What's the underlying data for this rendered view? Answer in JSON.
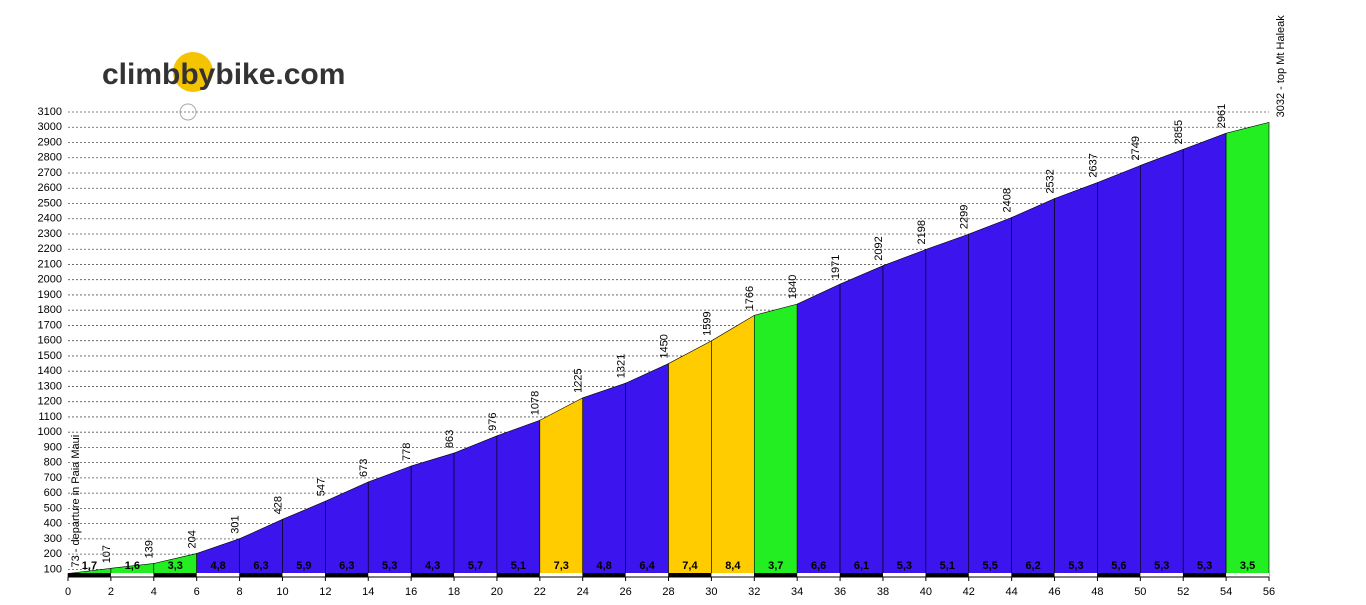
{
  "logo": "climbbybike.com",
  "chart_data": {
    "type": "profile",
    "x": [
      0,
      2,
      4,
      6,
      8,
      10,
      12,
      14,
      16,
      18,
      20,
      22,
      24,
      26,
      28,
      30,
      32,
      34,
      36,
      38,
      40,
      42,
      44,
      46,
      48,
      50,
      52,
      54,
      56
    ],
    "values": [
      73,
      107,
      139,
      204,
      301,
      428,
      547,
      673,
      778,
      863,
      976,
      1078,
      1225,
      1321,
      1450,
      1599,
      1766,
      1840,
      1971,
      2092,
      2198,
      2299,
      2408,
      2532,
      2637,
      2749,
      2855,
      2961,
      3032
    ],
    "value_labels": [
      "73 - departure in Paia Maui",
      "107",
      "139",
      "204",
      "301",
      "428",
      "547",
      "673",
      "778",
      "863",
      "976",
      "1078",
      "1225",
      "1321",
      "1450",
      "1599",
      "1766",
      "1840",
      "1971",
      "2092",
      "2198",
      "2299",
      "2408",
      "2532",
      "2637",
      "2749",
      "2855",
      "2961",
      "3032 - top Mt Haleak"
    ],
    "gradients": [
      1.7,
      1.6,
      3.3,
      4.8,
      6.3,
      5.9,
      6.3,
      5.3,
      4.3,
      5.7,
      5.1,
      7.3,
      4.8,
      6.4,
      7.4,
      8.4,
      3.7,
      6.6,
      6.1,
      5.3,
      5.1,
      5.5,
      6.2,
      5.3,
      5.6,
      5.3,
      5.3,
      3.5
    ],
    "gradient_labels": [
      "1,7",
      "1,6",
      "3,3",
      "4,8",
      "6,3",
      "5,9",
      "6,3",
      "5,3",
      "4,3",
      "5,7",
      "5,1",
      "7,3",
      "4,8",
      "6,4",
      "7,4",
      "8,4",
      "3,7",
      "6,6",
      "6,1",
      "5,3",
      "5,1",
      "5,5",
      "6,2",
      "5,3",
      "5,6",
      "5,3",
      "5,3",
      "3,5"
    ],
    "colors": [
      "#22ee22",
      "#22ee22",
      "#22ee22",
      "#3c14ee",
      "#3c14ee",
      "#3c14ee",
      "#3c14ee",
      "#3c14ee",
      "#3c14ee",
      "#3c14ee",
      "#3c14ee",
      "#ffcc00",
      "#3c14ee",
      "#3c14ee",
      "#ffcc00",
      "#ffcc00",
      "#22ee22",
      "#3c14ee",
      "#3c14ee",
      "#3c14ee",
      "#3c14ee",
      "#3c14ee",
      "#3c14ee",
      "#3c14ee",
      "#3c14ee",
      "#3c14ee",
      "#3c14ee",
      "#22ee22"
    ],
    "xlim": [
      0,
      56
    ],
    "xticks": [
      0,
      2,
      4,
      6,
      8,
      10,
      12,
      14,
      16,
      18,
      20,
      22,
      24,
      26,
      28,
      30,
      32,
      34,
      36,
      38,
      40,
      42,
      44,
      46,
      48,
      50,
      52,
      54,
      56
    ],
    "ylim": [
      50,
      3100
    ],
    "yticks": [
      100,
      200,
      300,
      400,
      500,
      600,
      700,
      800,
      900,
      1000,
      1100,
      1200,
      1300,
      1400,
      1500,
      1600,
      1700,
      1800,
      1900,
      2000,
      2100,
      2200,
      2300,
      2400,
      2500,
      2600,
      2700,
      2800,
      2900,
      3000,
      3100
    ],
    "grid": true
  }
}
